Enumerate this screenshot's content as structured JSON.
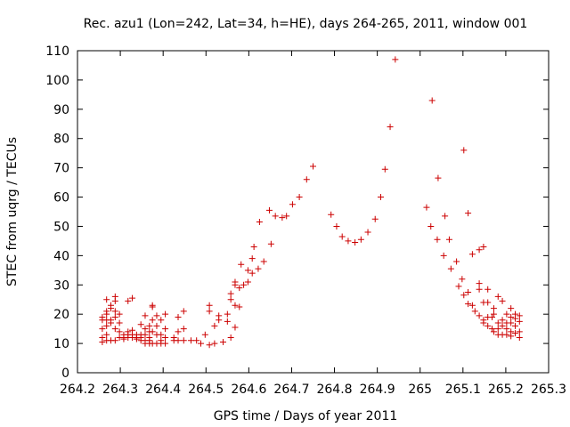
{
  "chart_data": {
    "type": "scatter",
    "title": "Rec. azu1 (Lon=242, Lat=34, h=HE), days 264-265, 2011, window 001",
    "xlabel": "GPS time / Days of year 2011",
    "ylabel": "STEC from uqrg / TECUs",
    "xlim": [
      264.2,
      265.3
    ],
    "ylim": [
      0,
      110
    ],
    "x_ticks": [
      "264.2",
      "264.3",
      "264.4",
      "264.5",
      "264.6",
      "264.7",
      "264.8",
      "264.9",
      "265",
      "265.1",
      "265.2",
      "265.3"
    ],
    "y_ticks": [
      "0",
      "10",
      "20",
      "30",
      "40",
      "50",
      "60",
      "70",
      "80",
      "90",
      "100",
      "110"
    ],
    "grid": false,
    "legend": "none",
    "marker": "plus",
    "color": "#cc0000",
    "points": [
      [
        264.258,
        19
      ],
      [
        264.258,
        18
      ],
      [
        264.258,
        15
      ],
      [
        264.258,
        12
      ],
      [
        264.258,
        10.5
      ],
      [
        264.268,
        25
      ],
      [
        264.268,
        21
      ],
      [
        264.268,
        20
      ],
      [
        264.268,
        18
      ],
      [
        264.268,
        16
      ],
      [
        264.268,
        13
      ],
      [
        264.268,
        11
      ],
      [
        264.278,
        23
      ],
      [
        264.278,
        22
      ],
      [
        264.278,
        18
      ],
      [
        264.278,
        17
      ],
      [
        264.278,
        11
      ],
      [
        264.288,
        26
      ],
      [
        264.288,
        24.5
      ],
      [
        264.288,
        21
      ],
      [
        264.288,
        19
      ],
      [
        264.288,
        15
      ],
      [
        264.288,
        11
      ],
      [
        264.298,
        20
      ],
      [
        264.298,
        17
      ],
      [
        264.298,
        14
      ],
      [
        264.298,
        12
      ],
      [
        264.308,
        13
      ],
      [
        264.308,
        12
      ],
      [
        264.308,
        11.5
      ],
      [
        264.318,
        24.5
      ],
      [
        264.318,
        14
      ],
      [
        264.318,
        13
      ],
      [
        264.318,
        12
      ],
      [
        264.328,
        25.5
      ],
      [
        264.328,
        14.5
      ],
      [
        264.328,
        13
      ],
      [
        264.328,
        12
      ],
      [
        264.338,
        13
      ],
      [
        264.338,
        12
      ],
      [
        264.338,
        11.5
      ],
      [
        264.348,
        16.5
      ],
      [
        264.348,
        13
      ],
      [
        264.348,
        12
      ],
      [
        264.348,
        11
      ],
      [
        264.358,
        19.5
      ],
      [
        264.358,
        15
      ],
      [
        264.358,
        13
      ],
      [
        264.358,
        11
      ],
      [
        264.358,
        10
      ],
      [
        264.368,
        16
      ],
      [
        264.368,
        14
      ],
      [
        264.368,
        12
      ],
      [
        264.368,
        11
      ],
      [
        264.368,
        10
      ],
      [
        264.375,
        23
      ],
      [
        264.375,
        22.5
      ],
      [
        264.375,
        18
      ],
      [
        264.375,
        14
      ],
      [
        264.375,
        10
      ],
      [
        264.385,
        19.5
      ],
      [
        264.385,
        16
      ],
      [
        264.385,
        13
      ],
      [
        264.385,
        10
      ],
      [
        264.395,
        18
      ],
      [
        264.395,
        13
      ],
      [
        264.395,
        11
      ],
      [
        264.395,
        10
      ],
      [
        264.405,
        20
      ],
      [
        264.405,
        15
      ],
      [
        264.405,
        12
      ],
      [
        264.405,
        10
      ],
      [
        264.425,
        12
      ],
      [
        264.425,
        11
      ],
      [
        264.435,
        19
      ],
      [
        264.435,
        14
      ],
      [
        264.435,
        11
      ],
      [
        264.448,
        21
      ],
      [
        264.448,
        15
      ],
      [
        264.448,
        11
      ],
      [
        264.465,
        11
      ],
      [
        264.478,
        11
      ],
      [
        264.488,
        10
      ],
      [
        264.498,
        13
      ],
      [
        264.508,
        23
      ],
      [
        264.508,
        21
      ],
      [
        264.508,
        9.5
      ],
      [
        264.52,
        16
      ],
      [
        264.52,
        10
      ],
      [
        264.53,
        19.5
      ],
      [
        264.53,
        18
      ],
      [
        264.54,
        10.5
      ],
      [
        264.55,
        20
      ],
      [
        264.55,
        17.5
      ],
      [
        264.558,
        27
      ],
      [
        264.558,
        25
      ],
      [
        264.558,
        12
      ],
      [
        264.568,
        31
      ],
      [
        264.568,
        30
      ],
      [
        264.568,
        23
      ],
      [
        264.568,
        15.5
      ],
      [
        264.578,
        29
      ],
      [
        264.578,
        22.5
      ],
      [
        264.582,
        37
      ],
      [
        264.588,
        30
      ],
      [
        264.598,
        35
      ],
      [
        264.598,
        31
      ],
      [
        264.608,
        39
      ],
      [
        264.608,
        34
      ],
      [
        264.612,
        43
      ],
      [
        264.622,
        35.5
      ],
      [
        264.625,
        51.5
      ],
      [
        264.635,
        38
      ],
      [
        264.648,
        55.5
      ],
      [
        264.652,
        44
      ],
      [
        264.662,
        53.5
      ],
      [
        264.678,
        53
      ],
      [
        264.688,
        53.5
      ],
      [
        264.702,
        57.5
      ],
      [
        264.718,
        60
      ],
      [
        264.735,
        66
      ],
      [
        264.75,
        70.5
      ],
      [
        264.792,
        54
      ],
      [
        264.805,
        50
      ],
      [
        264.818,
        46.5
      ],
      [
        264.832,
        45
      ],
      [
        264.848,
        44.5
      ],
      [
        264.862,
        45.5
      ],
      [
        264.878,
        48
      ],
      [
        264.895,
        52.5
      ],
      [
        264.908,
        60
      ],
      [
        264.918,
        69.5
      ],
      [
        264.93,
        84
      ],
      [
        264.942,
        107
      ],
      [
        265.015,
        56.5
      ],
      [
        265.025,
        50
      ],
      [
        265.028,
        93
      ],
      [
        265.04,
        45.5
      ],
      [
        265.042,
        66.5
      ],
      [
        265.055,
        40
      ],
      [
        265.058,
        53.5
      ],
      [
        265.068,
        45.5
      ],
      [
        265.072,
        35.5
      ],
      [
        265.085,
        38
      ],
      [
        265.09,
        29.5
      ],
      [
        265.098,
        32
      ],
      [
        265.102,
        76
      ],
      [
        265.102,
        26.5
      ],
      [
        265.112,
        54.5
      ],
      [
        265.112,
        27.5
      ],
      [
        265.112,
        23.5
      ],
      [
        265.122,
        40.5
      ],
      [
        265.122,
        23
      ],
      [
        265.128,
        21
      ],
      [
        265.138,
        42
      ],
      [
        265.138,
        30.5
      ],
      [
        265.138,
        28.5
      ],
      [
        265.138,
        19.5
      ],
      [
        265.148,
        43
      ],
      [
        265.148,
        24
      ],
      [
        265.148,
        18
      ],
      [
        265.148,
        17
      ],
      [
        265.158,
        28.5
      ],
      [
        265.158,
        24
      ],
      [
        265.158,
        19
      ],
      [
        265.158,
        16
      ],
      [
        265.168,
        19
      ],
      [
        265.168,
        15
      ],
      [
        265.172,
        22
      ],
      [
        265.172,
        20
      ],
      [
        265.172,
        14
      ],
      [
        265.182,
        26
      ],
      [
        265.182,
        17
      ],
      [
        265.182,
        15
      ],
      [
        265.182,
        13
      ],
      [
        265.192,
        24.5
      ],
      [
        265.192,
        18
      ],
      [
        265.192,
        16
      ],
      [
        265.192,
        13
      ],
      [
        265.202,
        20
      ],
      [
        265.202,
        17
      ],
      [
        265.202,
        15
      ],
      [
        265.202,
        13
      ],
      [
        265.212,
        22
      ],
      [
        265.212,
        19
      ],
      [
        265.212,
        17
      ],
      [
        265.212,
        14
      ],
      [
        265.212,
        12.5
      ],
      [
        265.222,
        20
      ],
      [
        265.222,
        18.5
      ],
      [
        265.222,
        16
      ],
      [
        265.222,
        13.5
      ],
      [
        265.232,
        19.5
      ],
      [
        265.232,
        17.5
      ],
      [
        265.232,
        14
      ],
      [
        265.232,
        12
      ]
    ]
  }
}
